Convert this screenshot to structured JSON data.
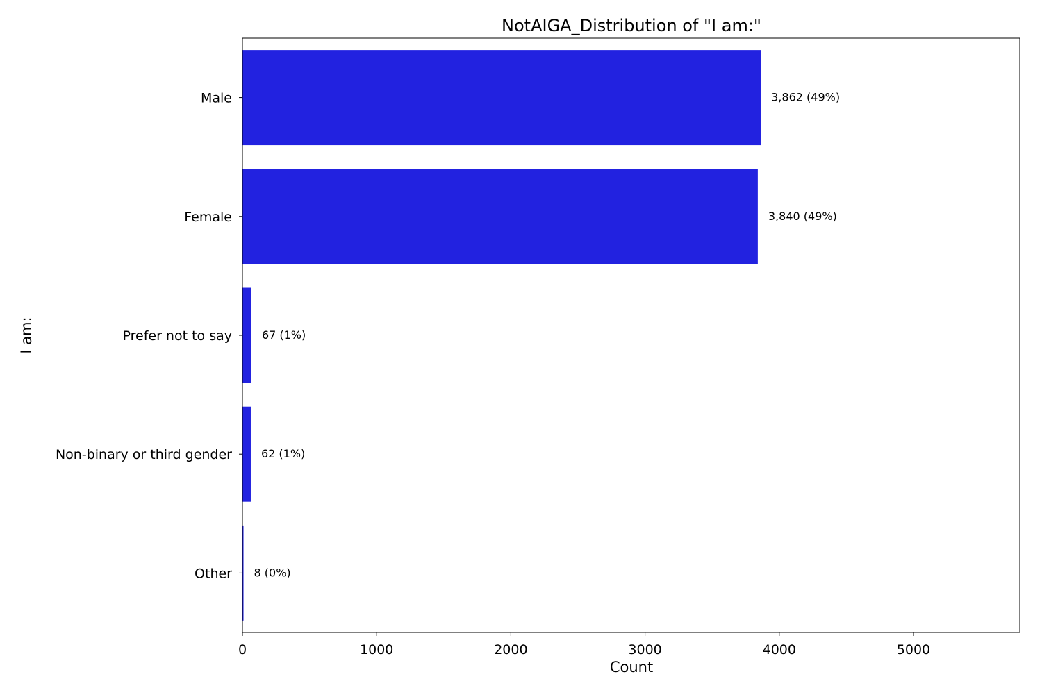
{
  "chart_data": {
    "type": "bar",
    "orientation": "horizontal",
    "title": "NotAIGA_Distribution of \"I am:\"",
    "xlabel": "Count",
    "ylabel": "I am:",
    "categories": [
      "Male",
      "Female",
      "Prefer not to say",
      "Non-binary or third gender",
      "Other"
    ],
    "values": [
      3862,
      3840,
      67,
      62,
      8
    ],
    "data_labels": [
      "3,862 (49%)",
      "3,840 (49%)",
      "67 (1%)",
      "62 (1%)",
      "8 (0%)"
    ],
    "xlim": [
      0,
      5792
    ],
    "xticks": [
      0,
      1000,
      2000,
      3000,
      4000,
      5000
    ],
    "xtick_labels": [
      "0",
      "1000",
      "2000",
      "3000",
      "4000",
      "5000"
    ],
    "bar_color": "#2222e0",
    "grid": false,
    "legend": "none"
  }
}
